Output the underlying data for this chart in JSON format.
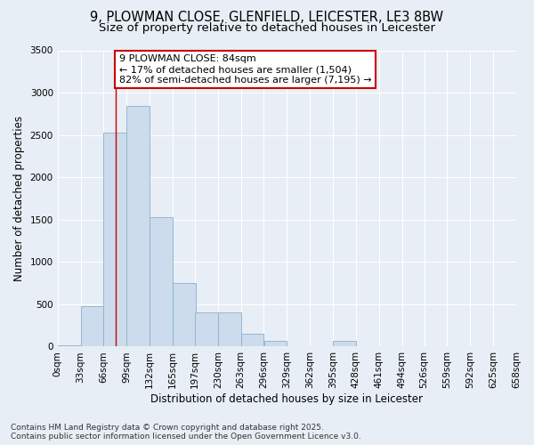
{
  "title_line1": "9, PLOWMAN CLOSE, GLENFIELD, LEICESTER, LE3 8BW",
  "title_line2": "Size of property relative to detached houses in Leicester",
  "xlabel": "Distribution of detached houses by size in Leicester",
  "ylabel": "Number of detached properties",
  "bar_color": "#ccdcec",
  "bar_edge_color": "#8ab0cc",
  "bar_left_edges": [
    0,
    33,
    66,
    99,
    132,
    165,
    197,
    230,
    263,
    296,
    329,
    362,
    395,
    428,
    461,
    494,
    526,
    559,
    592,
    625
  ],
  "bar_widths": [
    33,
    33,
    33,
    33,
    33,
    33,
    33,
    33,
    33,
    33,
    33,
    33,
    33,
    33,
    33,
    32,
    33,
    33,
    33,
    33
  ],
  "bar_heights": [
    20,
    480,
    2530,
    2840,
    1530,
    750,
    400,
    400,
    150,
    70,
    5,
    5,
    70,
    5,
    5,
    5,
    5,
    5,
    5,
    5
  ],
  "red_line_x": 84,
  "ylim": [
    0,
    3500
  ],
  "yticks": [
    0,
    500,
    1000,
    1500,
    2000,
    2500,
    3000,
    3500
  ],
  "xtick_labels": [
    "0sqm",
    "33sqm",
    "66sqm",
    "99sqm",
    "132sqm",
    "165sqm",
    "197sqm",
    "230sqm",
    "263sqm",
    "296sqm",
    "329sqm",
    "362sqm",
    "395sqm",
    "428sqm",
    "461sqm",
    "494sqm",
    "526sqm",
    "559sqm",
    "592sqm",
    "625sqm",
    "658sqm"
  ],
  "annotation_title": "9 PLOWMAN CLOSE: 84sqm",
  "annotation_line1": "← 17% of detached houses are smaller (1,504)",
  "annotation_line2": "82% of semi-detached houses are larger (7,195) →",
  "footnote_line1": "Contains HM Land Registry data © Crown copyright and database right 2025.",
  "footnote_line2": "Contains public sector information licensed under the Open Government Licence v3.0.",
  "background_color": "#e8eef5",
  "plot_bg_color": "#e8eef5",
  "grid_color": "#ffffff",
  "title_fontsize": 10.5,
  "subtitle_fontsize": 9.5,
  "label_fontsize": 8.5,
  "tick_fontsize": 7.5,
  "annotation_fontsize": 8,
  "annotation_box_color": "#ffffff",
  "annotation_box_edge": "#cc0000",
  "footnote_fontsize": 6.5
}
